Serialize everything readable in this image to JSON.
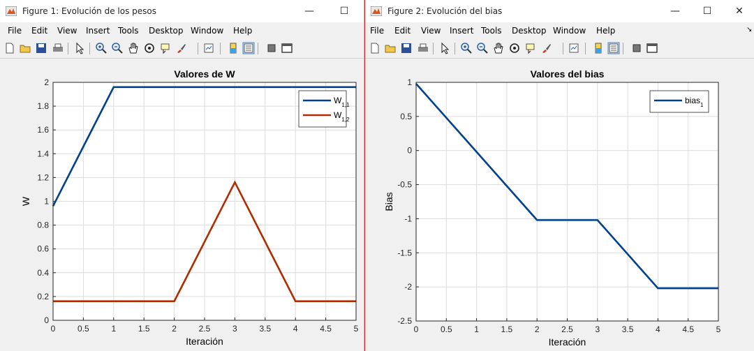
{
  "windows": [
    {
      "title": "Figure 1: Evolución de los pesos",
      "menu": [
        "File",
        "Edit",
        "View",
        "Insert",
        "Tools",
        "Desktop",
        "Window",
        "Help"
      ],
      "buttons": {
        "minimize": "—",
        "maximize": "☐"
      }
    },
    {
      "title": "Figure 2: Evolución del bias",
      "menu": [
        "File",
        "Edit",
        "View",
        "Insert",
        "Tools",
        "Desktop",
        "Window",
        "Help"
      ],
      "buttons": {
        "minimize": "—",
        "maximize": "☐",
        "close": "✕"
      },
      "dock_arrow": "↘"
    }
  ],
  "toolbar_icons": [
    "new-figure-icon",
    "open-file-icon",
    "save-icon",
    "print-icon",
    "edit-plot-icon",
    "zoom-in-icon",
    "zoom-out-icon",
    "pan-icon",
    "rotate-3d-icon",
    "data-cursor-icon",
    "brush-icon",
    "link-plot-icon",
    "insert-colorbar-icon",
    "insert-legend-icon",
    "hide-plot-tools-icon",
    "show-plot-tools-icon"
  ],
  "chart_data": [
    {
      "type": "line",
      "title": "Valores de W",
      "xlabel": "Iteración",
      "ylabel": "W",
      "xlim": [
        0,
        5
      ],
      "ylim": [
        0,
        2
      ],
      "xticks": [
        "0",
        "0.5",
        "1",
        "1.5",
        "2",
        "2.5",
        "3",
        "3.5",
        "4",
        "4.5",
        "5"
      ],
      "yticks": [
        "0",
        "0.2",
        "0.4",
        "0.6",
        "0.8",
        "1",
        "1.2",
        "1.4",
        "1.6",
        "1.8",
        "2"
      ],
      "grid": true,
      "legend_position": "top-right",
      "x": [
        0,
        1,
        2,
        3,
        4,
        5
      ],
      "series": [
        {
          "name": "W",
          "subscript": "1,1",
          "color": "#00408f",
          "values": [
            0.96,
            1.96,
            1.96,
            1.96,
            1.96,
            1.96
          ]
        },
        {
          "name": "W",
          "subscript": "1,2",
          "color": "#b22a00",
          "values": [
            0.16,
            0.16,
            0.16,
            1.16,
            0.16,
            0.16
          ]
        }
      ]
    },
    {
      "type": "line",
      "title": "Valores del bias",
      "xlabel": "Iteración",
      "ylabel": "Bias",
      "xlim": [
        0,
        5
      ],
      "ylim": [
        -2.5,
        1
      ],
      "xticks": [
        "0",
        "0.5",
        "1",
        "1.5",
        "2",
        "2.5",
        "3",
        "3.5",
        "4",
        "4.5",
        "5"
      ],
      "yticks": [
        "-2.5",
        "-2",
        "-1.5",
        "-1",
        "-0.5",
        "0",
        "0.5",
        "1"
      ],
      "grid": true,
      "legend_position": "top-right",
      "x": [
        0,
        1,
        2,
        3,
        4,
        5
      ],
      "series": [
        {
          "name": "bias",
          "subscript": "1",
          "color": "#00408f",
          "values": [
            0.98,
            -0.02,
            -1.02,
            -1.02,
            -2.02,
            -2.02
          ]
        }
      ]
    }
  ]
}
